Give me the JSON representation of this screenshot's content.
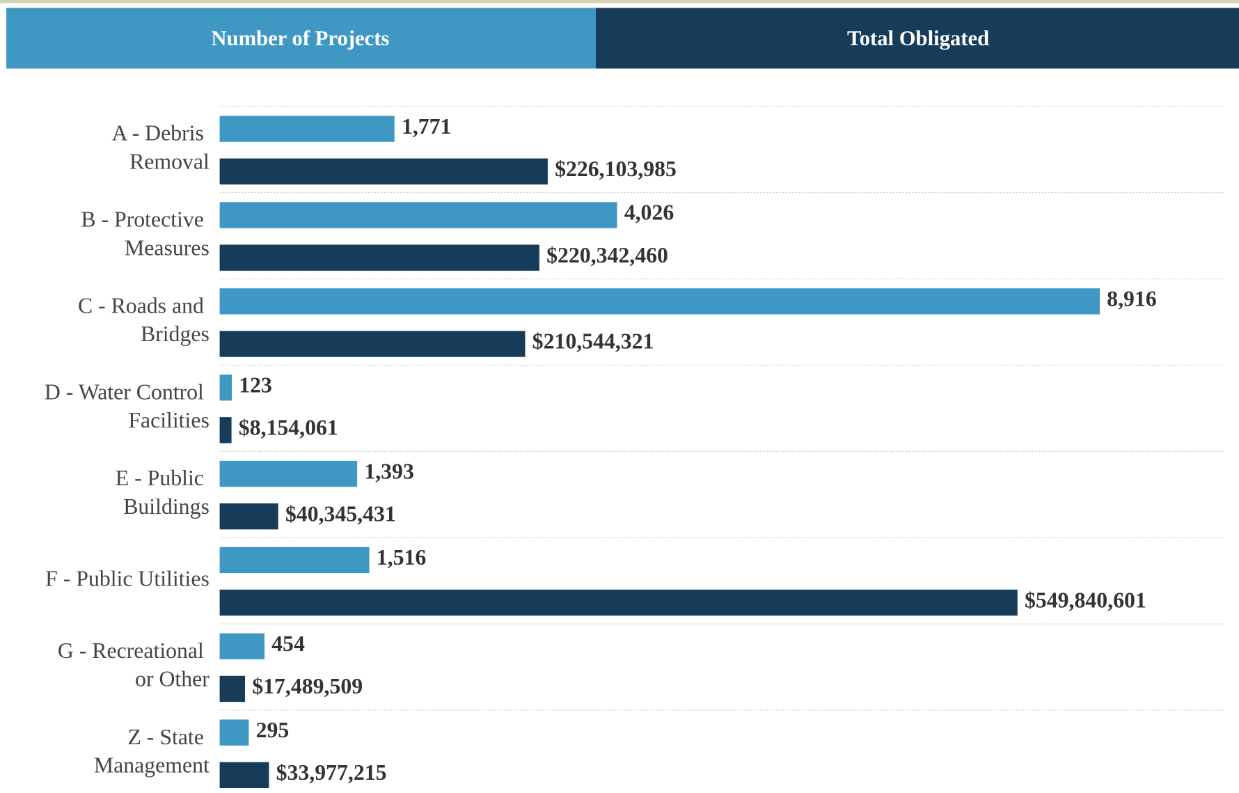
{
  "chart_data": {
    "type": "bar",
    "orientation": "horizontal",
    "categories": [
      "A - Debris Removal",
      "B - Protective Measures",
      "C - Roads and Bridges",
      "D - Water Control Facilities",
      "E - Public Buildings",
      "F - Public Utilities",
      "G - Recreational or Other",
      "Z - State Management"
    ],
    "series": [
      {
        "name": "Number of Projects",
        "color": "#3f97c4",
        "values": [
          1771,
          4026,
          8916,
          123,
          1393,
          1516,
          454,
          295
        ],
        "value_labels": [
          "1,771",
          "4,026",
          "8,916",
          "123",
          "1,393",
          "1,516",
          "454",
          "295"
        ]
      },
      {
        "name": "Total Obligated",
        "color": "#163c5a",
        "values": [
          226103985,
          220342460,
          210544321,
          8154061,
          40345431,
          549840601,
          17489509,
          33977215
        ],
        "value_labels": [
          "$226,103,985",
          "$220,342,460",
          "$210,544,321",
          "$8,154,061",
          "$40,345,431",
          "$549,840,601",
          "$17,489,509",
          "$33,977,215"
        ]
      }
    ]
  }
}
